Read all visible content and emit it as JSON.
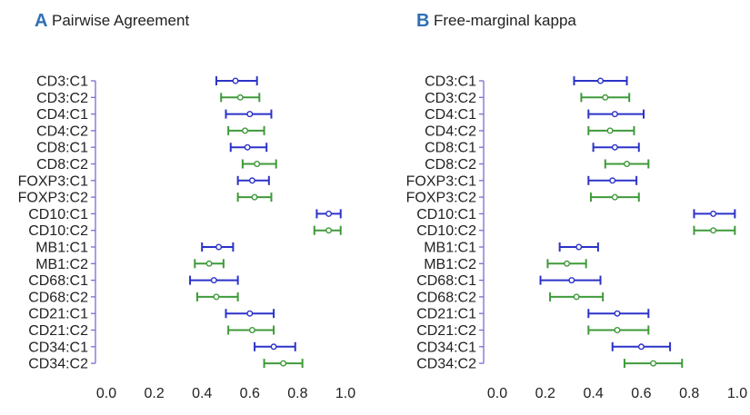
{
  "colors": {
    "c1": "#2d33c8",
    "c2": "#3f9a3a",
    "axis": "#7b6ccf",
    "letter": "#2f6fb6"
  },
  "chart_data": [
    {
      "type": "scatter",
      "panel_letter": "A",
      "title": "Pairwise Agreement",
      "categories": [
        "CD3:C1",
        "CD3:C2",
        "CD4:C1",
        "CD4:C2",
        "CD8:C1",
        "CD8:C2",
        "FOXP3:C1",
        "FOXP3:C2",
        "CD10:C1",
        "CD10:C2",
        "MB1:C1",
        "MB1:C2",
        "CD68:C1",
        "CD68:C2",
        "CD21:C1",
        "CD21:C2",
        "CD34:C1",
        "CD34:C2"
      ],
      "values": [
        0.54,
        0.56,
        0.6,
        0.58,
        0.59,
        0.63,
        0.61,
        0.62,
        0.93,
        0.93,
        0.47,
        0.43,
        0.45,
        0.46,
        0.6,
        0.61,
        0.7,
        0.74
      ],
      "lower": [
        0.46,
        0.48,
        0.5,
        0.51,
        0.52,
        0.57,
        0.55,
        0.55,
        0.88,
        0.87,
        0.4,
        0.37,
        0.35,
        0.38,
        0.5,
        0.51,
        0.62,
        0.66
      ],
      "upper": [
        0.63,
        0.64,
        0.69,
        0.66,
        0.67,
        0.71,
        0.68,
        0.69,
        0.98,
        0.98,
        0.53,
        0.49,
        0.55,
        0.55,
        0.7,
        0.7,
        0.79,
        0.82
      ],
      "xlim": [
        0,
        1
      ],
      "xticks": [
        "0.0",
        "0.2",
        "0.4",
        "0.6",
        "0.8",
        "1.0"
      ]
    },
    {
      "type": "scatter",
      "panel_letter": "B",
      "title": "Free-marginal kappa",
      "categories": [
        "CD3:C1",
        "CD3:C2",
        "CD4:C1",
        "CD4:C2",
        "CD8:C1",
        "CD8:C2",
        "FOXP3:C1",
        "FOXP3:C2",
        "CD10:C1",
        "CD10:C2",
        "MB1:C1",
        "MB1:C2",
        "CD68:C1",
        "CD68:C2",
        "CD21:C1",
        "CD21:C2",
        "CD34:C1",
        "CD34:C2"
      ],
      "values": [
        0.43,
        0.45,
        0.49,
        0.47,
        0.49,
        0.54,
        0.48,
        0.49,
        0.9,
        0.9,
        0.34,
        0.29,
        0.31,
        0.33,
        0.5,
        0.5,
        0.6,
        0.65
      ],
      "lower": [
        0.32,
        0.35,
        0.38,
        0.38,
        0.4,
        0.45,
        0.38,
        0.39,
        0.82,
        0.82,
        0.26,
        0.21,
        0.18,
        0.22,
        0.38,
        0.38,
        0.48,
        0.53
      ],
      "upper": [
        0.54,
        0.55,
        0.61,
        0.57,
        0.59,
        0.63,
        0.58,
        0.59,
        0.99,
        0.99,
        0.42,
        0.37,
        0.43,
        0.44,
        0.63,
        0.63,
        0.72,
        0.77
      ],
      "xlim": [
        0,
        1
      ],
      "xticks": [
        "0.0",
        "0.2",
        "0.4",
        "0.6",
        "0.8",
        "1.0"
      ]
    }
  ]
}
